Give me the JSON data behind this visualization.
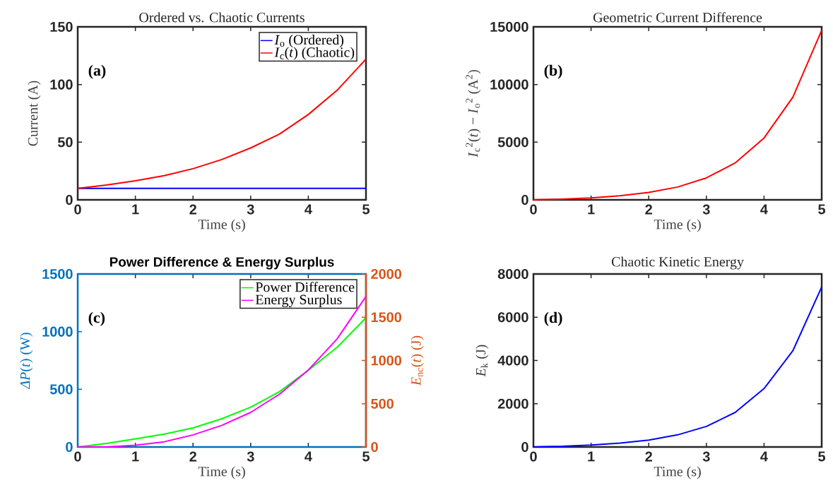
{
  "chart_data": [
    {
      "type": "line",
      "title": "Ordered vs. Chaotic Currents",
      "xlabel": "Time (s)",
      "ylabel": "Current (A)",
      "annotations": [
        "(a)"
      ],
      "x": [
        0,
        0.5,
        1,
        1.5,
        2,
        2.5,
        3,
        3.5,
        4,
        4.5,
        5
      ],
      "xlim": [
        0,
        5
      ],
      "ylim": [
        0,
        150
      ],
      "xticks": [
        0,
        1,
        2,
        3,
        4,
        5
      ],
      "yticks": [
        0,
        50,
        100,
        150
      ],
      "legend": "top right",
      "series": [
        {
          "name": "*I*$_{o}$ (Ordered)",
          "color": "#0000ff",
          "values": [
            10,
            10,
            10,
            10,
            10,
            10,
            10,
            10,
            10,
            10,
            10
          ]
        },
        {
          "name": "*I*$_{c}$(*t*) (Chaotic)",
          "color": "#ff0000",
          "values": [
            10,
            12.8,
            16.5,
            21,
            27,
            35,
            45,
            57,
            74,
            95,
            122
          ]
        }
      ]
    },
    {
      "type": "line",
      "title": "Geometric Current Difference",
      "xlabel": "Time (s)",
      "ylabel": "*I*$_{c}$$^{2}$(*t*) − *I*$_{o}$$^{2}$ (A$^{2}$)",
      "annotations": [
        "(b)"
      ],
      "x": [
        0,
        0.5,
        1,
        1.5,
        2,
        2.5,
        3,
        3.5,
        4,
        4.5,
        5
      ],
      "xlim": [
        0,
        5
      ],
      "ylim": [
        0,
        15000
      ],
      "xticks": [
        0,
        1,
        2,
        3,
        4,
        5
      ],
      "yticks": [
        0,
        5000,
        10000,
        15000
      ],
      "series": [
        {
          "color": "#ff0000",
          "values": [
            0,
            64,
            170,
            350,
            640,
            1110,
            1900,
            3200,
            5360,
            8900,
            14700
          ]
        }
      ]
    },
    {
      "type": "line",
      "title": "Power Difference & Energy Surplus",
      "xlabel": "Time (s)",
      "ylabel": "*ΔP*(*t*) (W)",
      "y2label": "*E*$_{nc}$(*t*) (J)",
      "annotations": [
        "(c)"
      ],
      "x": [
        0,
        0.5,
        1,
        1.5,
        2,
        2.5,
        3,
        3.5,
        4,
        4.5,
        5
      ],
      "xlim": [
        0,
        5
      ],
      "ylim": [
        0,
        1500
      ],
      "y2lim": [
        0,
        2000
      ],
      "xticks": [
        0,
        1,
        2,
        3,
        4,
        5
      ],
      "yticks": [
        0,
        500,
        1000,
        1500
      ],
      "y2ticks": [
        0,
        500,
        1000,
        1500,
        2000
      ],
      "legend": "top right",
      "series": [
        {
          "name": "Power Difference",
          "color": "#00ff00",
          "values": [
            0,
            30,
            70,
            112,
            165,
            245,
            345,
            480,
            665,
            865,
            1120
          ]
        },
        {
          "name": "Energy Surplus",
          "color": "#ff00ff",
          "axis": "y2",
          "values": [
            0,
            0,
            20,
            60,
            140,
            250,
            400,
            610,
            890,
            1250,
            1740
          ]
        }
      ]
    },
    {
      "type": "line",
      "title": "Chaotic Kinetic Energy",
      "xlabel": "Time (s)",
      "ylabel": "*E*$_{k}$ (J)",
      "annotations": [
        "(d)"
      ],
      "x": [
        0,
        0.5,
        1,
        1.5,
        2,
        2.5,
        3,
        3.5,
        4,
        4.5,
        5
      ],
      "xlim": [
        0,
        5
      ],
      "ylim": [
        0,
        8000
      ],
      "xticks": [
        0,
        1,
        2,
        3,
        4,
        5
      ],
      "yticks": [
        0,
        2000,
        4000,
        6000,
        8000
      ],
      "series": [
        {
          "color": "#0000ff",
          "values": [
            0,
            30,
            90,
            180,
            320,
            560,
            950,
            1600,
            2700,
            4450,
            7400
          ]
        }
      ]
    }
  ]
}
